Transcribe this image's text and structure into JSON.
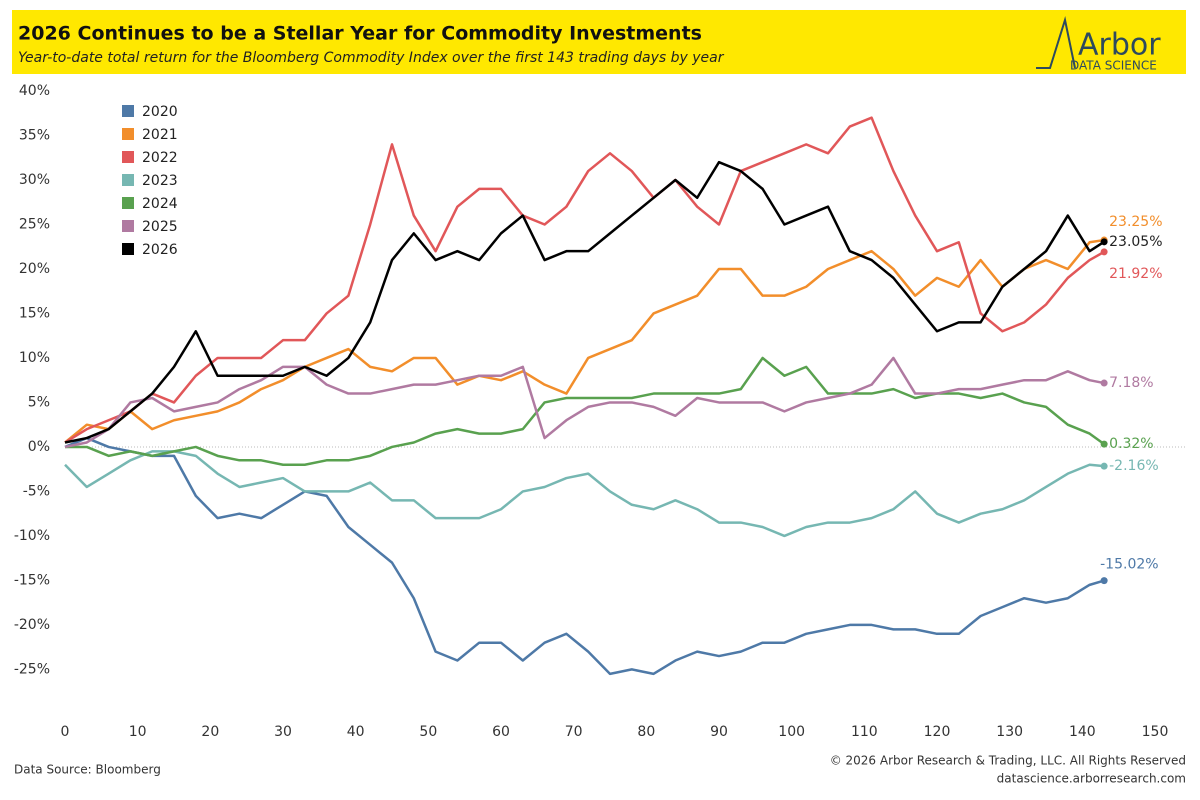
{
  "chart_data": {
    "type": "line",
    "title": "2026 Continues to be a Stellar Year for Commodity Investments",
    "subtitle": "Year-to-date total return for the Bloomberg Commodity Index over the first 143 trading days by year",
    "logo": {
      "name": "Arbor",
      "tagline": "DATA SCIENCE"
    },
    "source": "Data Source: Bloomberg",
    "copyright": "© 2026 Arbor Research & Trading, LLC. All Rights Reserved",
    "website": "datascience.arborresearch.com",
    "x": [
      0,
      3,
      6,
      9,
      12,
      15,
      18,
      21,
      24,
      27,
      30,
      33,
      36,
      39,
      42,
      45,
      48,
      51,
      54,
      57,
      60,
      63,
      66,
      69,
      72,
      75,
      78,
      81,
      84,
      87,
      90,
      93,
      96,
      99,
      102,
      105,
      108,
      111,
      114,
      117,
      120,
      123,
      126,
      129,
      132,
      135,
      138,
      141,
      143
    ],
    "xlim": [
      0,
      150
    ],
    "xticks": [
      0,
      10,
      20,
      30,
      40,
      50,
      60,
      70,
      80,
      90,
      100,
      110,
      120,
      130,
      140,
      150
    ],
    "ylim": [
      -29,
      40
    ],
    "yticks": [
      {
        "value": 40,
        "label": "40%"
      },
      {
        "value": 35,
        "label": "35%"
      },
      {
        "value": 30,
        "label": "30%"
      },
      {
        "value": 25,
        "label": "25%"
      },
      {
        "value": 20,
        "label": "20%"
      },
      {
        "value": 15,
        "label": "15%"
      },
      {
        "value": 10,
        "label": "10%"
      },
      {
        "value": 5,
        "label": "5%"
      },
      {
        "value": 0,
        "label": "0%"
      },
      {
        "value": -5,
        "label": "-5%"
      },
      {
        "value": -10,
        "label": "-10%"
      },
      {
        "value": -15,
        "label": "-15%"
      },
      {
        "value": -20,
        "label": "-20%"
      },
      {
        "value": -25,
        "label": "-25%"
      }
    ],
    "grid": false,
    "legend": "top-left",
    "series": [
      {
        "name": "2020",
        "color": "#4e79a7",
        "last_label": "-15.02%",
        "values": [
          0,
          1,
          0,
          -0.5,
          -1,
          -1,
          -5.5,
          -8,
          -7.5,
          -8,
          -6.5,
          -5,
          -5.5,
          -9,
          -11,
          -13,
          -17,
          -23,
          -24,
          -22,
          -22,
          -24,
          -22,
          -21,
          -23,
          -25.5,
          -25,
          -25.5,
          -24,
          -23,
          -23.5,
          -23,
          -22,
          -22,
          -21,
          -20.5,
          -20,
          -20,
          -20.5,
          -20.5,
          -21,
          -21,
          -19,
          -18,
          -17,
          -17.5,
          -17,
          -15.5,
          -15.02
        ]
      },
      {
        "name": "2021",
        "color": "#f28e2b",
        "last_label": "23.25%",
        "values": [
          0.5,
          2.5,
          2,
          4,
          2,
          3,
          3.5,
          4,
          5,
          6.5,
          7.5,
          9,
          10,
          11,
          9,
          8.5,
          10,
          10,
          7,
          8,
          7.5,
          8.5,
          7,
          6,
          10,
          11,
          12,
          15,
          16,
          17,
          20,
          20,
          17,
          17,
          18,
          20,
          21,
          22,
          20,
          17,
          19,
          18,
          21,
          18,
          20,
          21,
          20,
          23,
          23.25
        ]
      },
      {
        "name": "2022",
        "color": "#e15759",
        "last_label": "21.92%",
        "values": [
          0.5,
          2,
          3,
          4,
          6,
          5,
          8,
          10,
          10,
          10,
          12,
          12,
          15,
          17,
          25,
          34,
          26,
          22,
          27,
          29,
          29,
          26,
          25,
          27,
          31,
          33,
          31,
          28,
          30,
          27,
          25,
          31,
          32,
          33,
          34,
          33,
          36,
          37,
          31,
          26,
          22,
          23,
          15,
          13,
          14,
          16,
          19,
          21,
          21.92
        ]
      },
      {
        "name": "2023",
        "color": "#76b7b2",
        "last_label": "-2.16%",
        "values": [
          -2,
          -4.5,
          -3,
          -1.5,
          -0.5,
          -0.5,
          -1,
          -3,
          -4.5,
          -4,
          -3.5,
          -5,
          -5,
          -5,
          -4,
          -6,
          -6,
          -8,
          -8,
          -8,
          -7,
          -5,
          -4.5,
          -3.5,
          -3,
          -5,
          -6.5,
          -7,
          -6,
          -7,
          -8.5,
          -8.5,
          -9,
          -10,
          -9,
          -8.5,
          -8.5,
          -8,
          -7,
          -5,
          -7.5,
          -8.5,
          -7.5,
          -7,
          -6,
          -4.5,
          -3,
          -2,
          -2.16
        ]
      },
      {
        "name": "2024",
        "color": "#59a14f",
        "last_label": "0.32%",
        "values": [
          0,
          0,
          -1,
          -0.5,
          -1,
          -0.5,
          0,
          -1,
          -1.5,
          -1.5,
          -2,
          -2,
          -1.5,
          -1.5,
          -1,
          0,
          0.5,
          1.5,
          2,
          1.5,
          1.5,
          2,
          5,
          5.5,
          5.5,
          5.5,
          5.5,
          6,
          6,
          6,
          6,
          6.5,
          10,
          8,
          9,
          6,
          6,
          6,
          6.5,
          5.5,
          6,
          6,
          5.5,
          6,
          5,
          4.5,
          2.5,
          1.5,
          0.32
        ]
      },
      {
        "name": "2025",
        "color": "#b07aa1",
        "last_label": "7.18%",
        "values": [
          0,
          0.5,
          2,
          5,
          5.5,
          4,
          4.5,
          5,
          6.5,
          7.5,
          9,
          9,
          7,
          6,
          6,
          6.5,
          7,
          7,
          7.5,
          8,
          8,
          9,
          1,
          3,
          4.5,
          5,
          5,
          4.5,
          3.5,
          5.5,
          5,
          5,
          5,
          4,
          5,
          5.5,
          6,
          7,
          10,
          6,
          6,
          6.5,
          6.5,
          7,
          7.5,
          7.5,
          8.5,
          7.5,
          7.18
        ]
      },
      {
        "name": "2026",
        "color": "#000000",
        "last_label": "23.05%",
        "values": [
          0.5,
          1,
          2,
          4,
          6,
          9,
          13,
          8,
          8,
          8,
          8,
          9,
          8,
          10,
          14,
          21,
          24,
          21,
          22,
          21,
          24,
          26,
          21,
          22,
          22,
          24,
          26,
          28,
          30,
          28,
          32,
          31,
          29,
          25,
          26,
          27,
          22,
          21,
          19,
          16,
          13,
          14,
          14,
          18,
          20,
          22,
          26,
          22,
          23.05
        ]
      }
    ]
  }
}
